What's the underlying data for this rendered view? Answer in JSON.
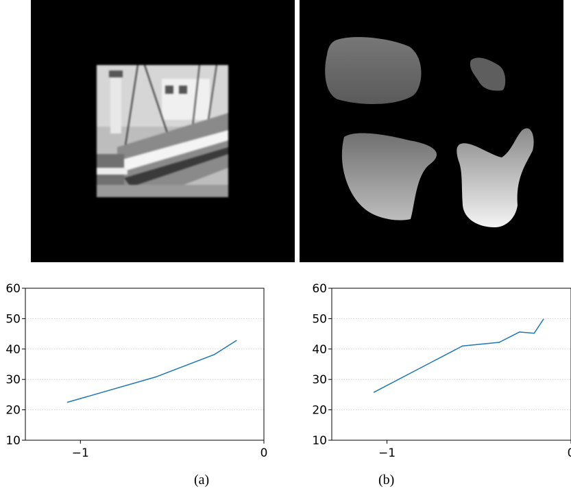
{
  "figure": {
    "captions": [
      "(a)",
      "(b)"
    ]
  },
  "chart_data": [
    {
      "type": "line",
      "xlim": [
        -1.3,
        0
      ],
      "ylim": [
        10,
        60
      ],
      "xticks": [
        -1,
        0
      ],
      "xtick_labels": [
        "−1",
        "0"
      ],
      "yticks": [
        10,
        20,
        30,
        40,
        50,
        60
      ],
      "ytick_labels": [
        "10",
        "20",
        "30",
        "40",
        "50",
        "60"
      ],
      "grid": "y-dotted",
      "color": "#1f77b4",
      "x": [
        -1.07,
        -0.59,
        -0.27,
        -0.15
      ],
      "y": [
        22.5,
        30.8,
        38.2,
        42.8
      ]
    },
    {
      "type": "line",
      "xlim": [
        -1.3,
        0
      ],
      "ylim": [
        10,
        60
      ],
      "xticks": [
        -1,
        0
      ],
      "xtick_labels": [
        "−1",
        "0"
      ],
      "yticks": [
        10,
        20,
        30,
        40,
        50,
        60
      ],
      "ytick_labels": [
        "10",
        "20",
        "30",
        "40",
        "50",
        "60"
      ],
      "grid": "y-dotted",
      "color": "#1f77b4",
      "x": [
        -1.07,
        -0.59,
        -0.39,
        -0.28,
        -0.2,
        -0.15
      ],
      "y": [
        25.8,
        41.0,
        42.2,
        45.6,
        45.2,
        49.8
      ]
    }
  ]
}
